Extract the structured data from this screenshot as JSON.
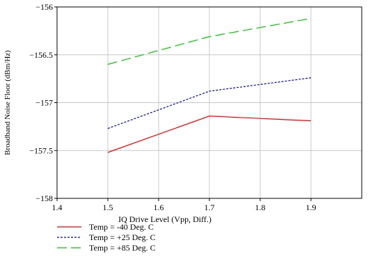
{
  "chart_data": {
    "type": "line",
    "title": "",
    "xlabel": "IQ Drive Level (Vpp, Diff.)",
    "ylabel": "Broadband Noise Floor (dBm/Hz)",
    "xlim": [
      1.4,
      2.0
    ],
    "ylim": [
      -158,
      -156
    ],
    "xticks": [
      1.4,
      1.5,
      1.6,
      1.7,
      1.8,
      1.9
    ],
    "xtick_labels": [
      "1.4",
      "1.5",
      "1.6",
      "1.7",
      "1.8",
      "1.9"
    ],
    "yticks": [
      -158,
      -157.5,
      -157,
      -156.5,
      -156
    ],
    "ytick_labels": [
      "−158",
      "−157.5",
      "−157",
      "−156.5",
      "−156"
    ],
    "grid": true,
    "legend_position": "bottom-left, below plot",
    "series": [
      {
        "name": "Temp = -40 Deg. C",
        "color": "#ff0000",
        "dash": "solid",
        "x": [
          1.5,
          1.7,
          1.9
        ],
        "y": [
          -157.52,
          -157.14,
          -157.19
        ]
      },
      {
        "name": "Temp = +25 Deg. C",
        "color": "#0000cc",
        "dash": "dotted",
        "x": [
          1.5,
          1.7,
          1.9
        ],
        "y": [
          -157.27,
          -156.88,
          -156.74
        ]
      },
      {
        "name": "Temp = +85 Deg. C",
        "color": "#00cc00",
        "dash": "dashed",
        "x": [
          1.5,
          1.7,
          1.9
        ],
        "y": [
          -156.6,
          -156.31,
          -156.12
        ]
      }
    ]
  }
}
